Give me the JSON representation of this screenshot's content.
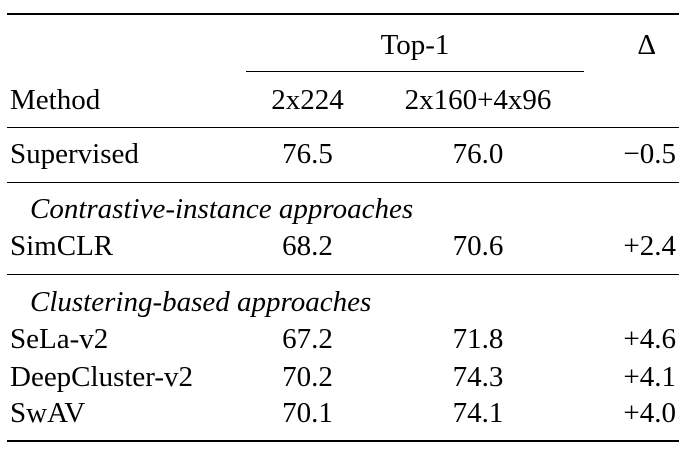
{
  "header": {
    "group_label": "Top-1",
    "delta_label": "Δ",
    "method_label": "Method",
    "col_a": "2x224",
    "col_b": "2x160+4x96"
  },
  "rows": {
    "supervised": {
      "method": "Supervised",
      "a": "76.5",
      "b": "76.0",
      "delta": "−0.5"
    }
  },
  "sections": [
    {
      "title": "Contrastive-instance approaches",
      "rows": [
        {
          "method": "SimCLR",
          "a": "68.2",
          "b": "70.6",
          "delta": "+2.4"
        }
      ]
    },
    {
      "title": "Clustering-based approaches",
      "rows": [
        {
          "method": "SeLa-v2",
          "a": "67.2",
          "b": "71.8",
          "delta": "+4.6"
        },
        {
          "method": "DeepCluster-v2",
          "a": "70.2",
          "b": "74.3",
          "delta": "+4.1"
        },
        {
          "method": "SwAV",
          "a": "70.1",
          "b": "74.1",
          "delta": "+4.0"
        }
      ]
    }
  ]
}
